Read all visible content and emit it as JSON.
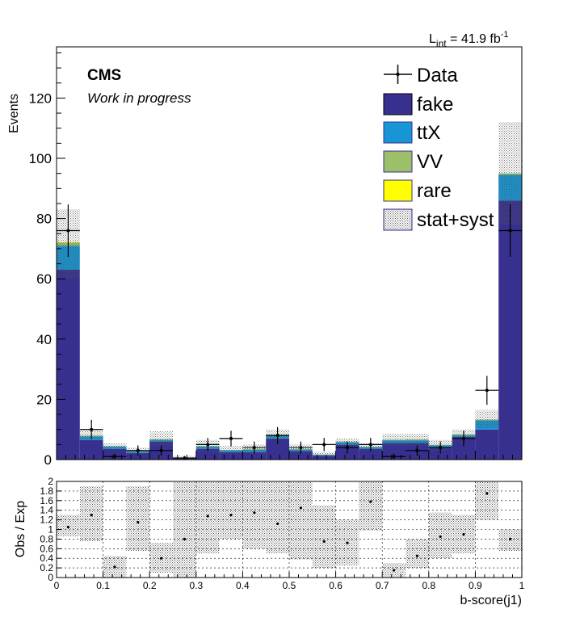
{
  "lumi_label": {
    "main": "L",
    "sub": "int",
    "value": " = 41.9 fb",
    "sup": "-1"
  },
  "cms_label": "CMS",
  "wip_label": "Work in progress",
  "colors": {
    "fake": "#38308f",
    "ttX": "#1795d4",
    "VV": "#9cbf6a",
    "rare": "#ffff00",
    "data": "#000000",
    "band_fill": "#b4b4b4"
  },
  "chart_data": [
    {
      "type": "bar",
      "stacked": true,
      "xlabel": "",
      "ylabel": "Events",
      "xlim": [
        0,
        1
      ],
      "ylim": [
        0,
        137
      ],
      "yticks": [
        0,
        20,
        40,
        60,
        80,
        100,
        120
      ],
      "bin_edges": [
        0,
        0.05,
        0.1,
        0.15,
        0.2,
        0.25,
        0.3,
        0.35,
        0.4,
        0.45,
        0.5,
        0.55,
        0.6,
        0.65,
        0.7,
        0.75,
        0.8,
        0.85,
        0.9,
        0.95,
        1.0
      ],
      "series": [
        {
          "name": "fake",
          "values": [
            63,
            6.5,
            3.5,
            2.2,
            6,
            0.5,
            3.5,
            2.5,
            2.5,
            7,
            2.8,
            1.3,
            5,
            3.5,
            5.5,
            5.5,
            4,
            7.5,
            10,
            86
          ]
        },
        {
          "name": "ttX",
          "values": [
            8,
            1.2,
            0.8,
            0.6,
            0.6,
            0.1,
            0.8,
            0.6,
            0.8,
            1,
            0.6,
            0.3,
            0.8,
            0.7,
            0.9,
            0.9,
            0.7,
            0.6,
            3,
            8.5
          ]
        },
        {
          "name": "VV",
          "values": [
            1,
            0.3,
            0.2,
            0.1,
            0.2,
            0,
            0.2,
            0.1,
            0.2,
            0.3,
            0.1,
            0.1,
            0.2,
            0.1,
            0.2,
            0.3,
            0.2,
            0.3,
            0.3,
            0.5
          ]
        },
        {
          "name": "rare",
          "values": [
            0.2,
            0,
            0,
            0,
            0,
            0,
            0,
            0,
            0,
            0,
            0,
            0,
            0,
            0,
            0,
            0,
            0,
            0,
            0,
            0
          ]
        }
      ],
      "uncertainty": {
        "name": "stat+syst",
        "total": [
          72,
          8,
          4.5,
          2.9,
          6.8,
          0.6,
          4.5,
          3.2,
          3.5,
          8.3,
          3.5,
          1.7,
          6,
          4.3,
          6.6,
          6.7,
          4.9,
          8.4,
          13.3,
          95
        ],
        "up": [
          83,
          10,
          5.5,
          4,
          9.5,
          1.2,
          6.5,
          4.5,
          5,
          10,
          5,
          2.5,
          7,
          5.5,
          8.5,
          8.5,
          6.5,
          10,
          16.5,
          112
        ],
        "down": [
          60,
          6.5,
          3.5,
          1.8,
          4.5,
          0.2,
          2.5,
          2,
          2,
          6.5,
          2,
          1,
          4.5,
          3,
          4.5,
          4.5,
          3,
          6.5,
          10.5,
          78
        ]
      },
      "data": {
        "name": "Data",
        "x": [
          0.025,
          0.075,
          0.125,
          0.175,
          0.225,
          0.275,
          0.325,
          0.375,
          0.425,
          0.475,
          0.525,
          0.575,
          0.625,
          0.675,
          0.725,
          0.775,
          0.825,
          0.875,
          0.925,
          0.975
        ],
        "values": [
          76,
          10,
          1,
          3,
          3,
          0.5,
          5,
          7,
          4,
          8,
          4,
          5,
          4,
          5,
          1,
          3,
          4,
          7,
          23,
          76
        ],
        "err": [
          8.7,
          3.2,
          1,
          1.7,
          1.7,
          0.7,
          2.2,
          2.6,
          2,
          2.8,
          2,
          2.2,
          2,
          2.2,
          1,
          1.7,
          2,
          2.6,
          4.8,
          8.7
        ]
      },
      "legend": [
        "Data",
        "fake",
        "ttX",
        "VV",
        "rare",
        "stat+syst"
      ],
      "legend_position": "top-right"
    },
    {
      "type": "scatter",
      "xlabel": "b-score(j1)",
      "ylabel": "Obs / Exp",
      "xlim": [
        0,
        1
      ],
      "ylim": [
        0,
        2
      ],
      "yticks": [
        0,
        0.2,
        0.4,
        0.6,
        0.8,
        1,
        1.2,
        1.4,
        1.6,
        1.8,
        2
      ],
      "ytick_labels": [
        "0",
        "0.2",
        "0.4",
        "0.6",
        "0.8",
        "1",
        "1.2",
        "1.4",
        "1.6",
        "1.8",
        "2"
      ],
      "xticks": [
        0,
        0.1,
        0.2,
        0.3,
        0.4,
        0.5,
        0.6,
        0.7,
        0.8,
        0.9,
        1
      ],
      "xtick_labels": [
        "0",
        "0.1",
        "0.2",
        "0.3",
        "0.4",
        "0.5",
        "0.6",
        "0.7",
        "0.8",
        "0.9",
        "1"
      ],
      "ratio": [
        1.05,
        1.3,
        0.22,
        1.15,
        0.4,
        0.8,
        1.28,
        1.3,
        1.35,
        1.12,
        1.45,
        0.75,
        0.72,
        1.58,
        0.15,
        0.45,
        0.85,
        0.9,
        1.75,
        0.8
      ],
      "band_up": [
        1.3,
        1.9,
        0.45,
        1.9,
        0.72,
        2.0,
        2.0,
        2.0,
        2.0,
        2.0,
        2.0,
        1.5,
        1.2,
        2.0,
        0.3,
        0.8,
        1.35,
        1.3,
        2.0,
        1.0
      ],
      "band_down": [
        0.85,
        0.75,
        0.0,
        0.55,
        0.1,
        0.0,
        0.5,
        0.8,
        0.6,
        0.5,
        0.38,
        0.2,
        0.25,
        0.98,
        0.0,
        0.2,
        0.4,
        0.5,
        1.2,
        0.55
      ]
    }
  ]
}
